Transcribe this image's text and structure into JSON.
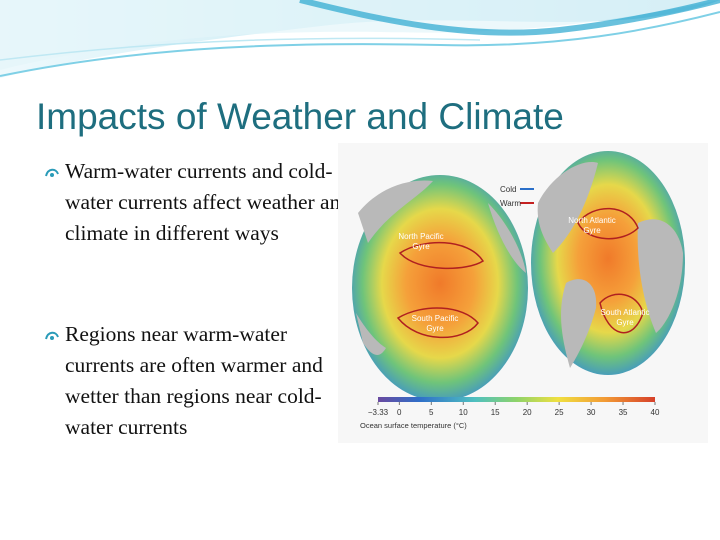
{
  "header": {
    "title": "Impacts of Weather and Climate"
  },
  "bullets": [
    "Warm-water currents and cold-water currents affect weather and climate in different ways",
    "Regions near warm-water currents are often warmer and wetter than regions near cold-water currents"
  ],
  "figure": {
    "legend": [
      "Cold",
      "Warm"
    ],
    "gyres": [
      [
        "North Pacific",
        "Gyre"
      ],
      [
        "North Atlantic",
        "Gyre"
      ],
      [
        "South Pacific",
        "Gyre"
      ],
      [
        "South Atlantic",
        "Gyre"
      ]
    ],
    "colorbar": {
      "ticks": [
        {
          "value": -3.33,
          "label": "−3.33"
        },
        0,
        5,
        10,
        15,
        20,
        25,
        30,
        35,
        40
      ],
      "label": "Ocean surface temperature (°C)"
    }
  }
}
